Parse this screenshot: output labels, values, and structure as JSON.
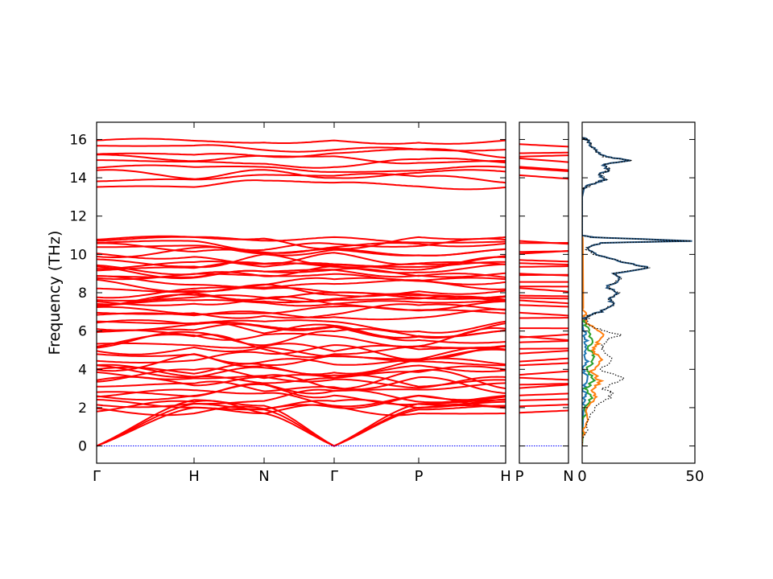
{
  "chart_data": [
    {
      "type": "line",
      "name": "band-structure-main",
      "ylabel": "Frequency (THz)",
      "ylim": [
        -0.9,
        16.9
      ],
      "yticks": [
        0,
        2,
        4,
        6,
        8,
        10,
        12,
        14,
        16
      ],
      "x_tick_labels": [
        "Γ",
        "H",
        "N",
        "Γ",
        "P",
        "H"
      ],
      "path_segments": [
        "Γ-H",
        "H-N",
        "N-Γ",
        "Γ-P",
        "P-H"
      ],
      "line_color": "#ff0000",
      "zero_line_color": "#0000ff",
      "band_groups": [
        {
          "range": [
            0,
            2.2
          ],
          "description": "acoustic branches"
        },
        {
          "range": [
            1.6,
            6.6
          ],
          "description": "low optical branches"
        },
        {
          "range": [
            6.6,
            10.9
          ],
          "description": "middle optical branches"
        },
        {
          "range": [
            13.4,
            16.0
          ],
          "description": "high optical branches"
        }
      ]
    },
    {
      "type": "line",
      "name": "band-structure-segment",
      "ylim": [
        -0.9,
        16.9
      ],
      "x_tick_labels": [
        "P",
        "N"
      ],
      "line_color": "#ff0000"
    },
    {
      "type": "line",
      "name": "phonon-dos",
      "x_tick_labels": [
        "0",
        "50"
      ],
      "xlim": [
        0,
        50
      ],
      "ylim": [
        -0.9,
        16.9
      ],
      "series": [
        {
          "color": "#1f77b4",
          "values_freq_dos": [
            [
              0,
              0
            ],
            [
              1,
              0.3
            ],
            [
              2,
              0.6
            ],
            [
              2.6,
              1.5
            ],
            [
              3,
              0.8
            ],
            [
              3.5,
              2
            ],
            [
              4,
              1
            ],
            [
              4.5,
              2.5
            ],
            [
              5,
              1
            ],
            [
              5.5,
              2
            ],
            [
              6,
              0.6
            ],
            [
              6.5,
              0
            ]
          ]
        },
        {
          "color": "#2ca02c",
          "values_freq_dos": [
            [
              0,
              0
            ],
            [
              1,
              0.5
            ],
            [
              2,
              1.5
            ],
            [
              2.6,
              4
            ],
            [
              3,
              2
            ],
            [
              3.5,
              5
            ],
            [
              4,
              2
            ],
            [
              4.6,
              6
            ],
            [
              5,
              3
            ],
            [
              5.6,
              4
            ],
            [
              6.3,
              2
            ],
            [
              6.6,
              0
            ]
          ]
        },
        {
          "color": "#ff7f0e",
          "values_freq_dos": [
            [
              0,
              0
            ],
            [
              1,
              1
            ],
            [
              2,
              3
            ],
            [
              2.5,
              6
            ],
            [
              2.9,
              5
            ],
            [
              3.4,
              8
            ],
            [
              3.9,
              4
            ],
            [
              4.5,
              8
            ],
            [
              5,
              5
            ],
            [
              5.4,
              7
            ],
            [
              5.9,
              9
            ],
            [
              6.3,
              3
            ],
            [
              6.7,
              1
            ],
            [
              7.2,
              0.5
            ],
            [
              10.8,
              0.3
            ],
            [
              11,
              0
            ]
          ]
        },
        {
          "color": "#1f4e79",
          "values_freq_dos": [
            [
              6.6,
              0
            ],
            [
              6.8,
              3
            ],
            [
              7.0,
              8
            ],
            [
              7.4,
              14
            ],
            [
              7.7,
              12
            ],
            [
              8.0,
              16
            ],
            [
              8.3,
              11
            ],
            [
              8.7,
              17
            ],
            [
              9.0,
              14
            ],
            [
              9.3,
              30
            ],
            [
              9.6,
              18
            ],
            [
              10.0,
              6
            ],
            [
              10.3,
              2
            ],
            [
              10.6,
              8
            ],
            [
              10.7,
              48
            ],
            [
              10.9,
              4
            ],
            [
              11.0,
              0
            ],
            [
              13.4,
              0
            ],
            [
              13.6,
              3
            ],
            [
              13.9,
              10
            ],
            [
              14.2,
              8
            ],
            [
              14.4,
              12
            ],
            [
              14.7,
              9
            ],
            [
              14.9,
              22
            ],
            [
              15.1,
              10
            ],
            [
              15.4,
              6
            ],
            [
              15.7,
              4
            ],
            [
              16.0,
              2
            ],
            [
              16.1,
              0
            ]
          ]
        },
        {
          "color": "#000000",
          "dashed": true,
          "values_freq_dos": [
            [
              0,
              0
            ],
            [
              1,
              1.8
            ],
            [
              2,
              5
            ],
            [
              2.5,
              12
            ],
            [
              2.8,
              13
            ],
            [
              3,
              9
            ],
            [
              3.5,
              19
            ],
            [
              4,
              8
            ],
            [
              4.6,
              14
            ],
            [
              5,
              9
            ],
            [
              5.5,
              10
            ],
            [
              5.8,
              17
            ],
            [
              6,
              10
            ],
            [
              6.3,
              3
            ],
            [
              6.6,
              2
            ],
            [
              6.8,
              3
            ],
            [
              7.0,
              8
            ],
            [
              7.4,
              14
            ],
            [
              7.7,
              12
            ],
            [
              8.0,
              16
            ],
            [
              8.3,
              11
            ],
            [
              8.7,
              17
            ],
            [
              9.0,
              14
            ],
            [
              9.3,
              30
            ],
            [
              9.6,
              18
            ],
            [
              10.0,
              6
            ],
            [
              10.3,
              2
            ],
            [
              10.6,
              8
            ],
            [
              10.7,
              48
            ],
            [
              10.9,
              4
            ],
            [
              11.0,
              0
            ],
            [
              13.4,
              0
            ],
            [
              13.6,
              3
            ],
            [
              13.9,
              10
            ],
            [
              14.2,
              8
            ],
            [
              14.4,
              12
            ],
            [
              14.7,
              9
            ],
            [
              14.9,
              22
            ],
            [
              15.1,
              10
            ],
            [
              15.4,
              6
            ],
            [
              15.7,
              4
            ],
            [
              16.0,
              2
            ],
            [
              16.1,
              0
            ]
          ]
        }
      ]
    }
  ]
}
